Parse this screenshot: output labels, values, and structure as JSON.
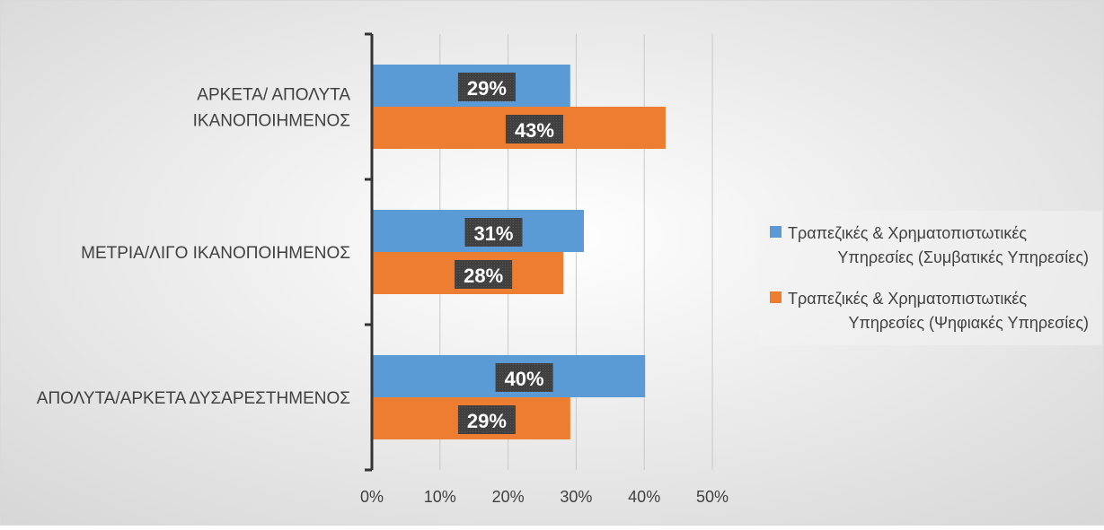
{
  "chart_data": {
    "type": "bar",
    "orientation": "horizontal",
    "categories": [
      [
        "ΑΡΚΕΤΑ/ ΑΠΟΛΥΤΑ",
        "ΙΚΑΝΟΠΟΙΗΜΕΝΟΣ"
      ],
      [
        "ΜΕΤΡΙΑ/ΛΙΓΟ ΙΚΑΝΟΠΟΙΗΜΕΝΟΣ"
      ],
      [
        "ΑΠΟΛΥΤΑ/ΑΡΚΕΤΑ ΔΥΣΑΡΕΣΤΗΜΕΝΟΣ"
      ]
    ],
    "series": [
      {
        "name": [
          "Τραπεζικές & Χρηματοπιστωτικές",
          "Υπηρεσίες (Συμβατικές Υπηρεσίες)"
        ],
        "values": [
          0.29,
          0.31,
          0.4
        ],
        "data_labels": [
          "29%",
          "31%",
          "40%"
        ],
        "color": "#5B9BD5"
      },
      {
        "name": [
          "Τραπεζικές & Χρηματοπιστωτικές",
          "Υπηρεσίες (Ψηφιακές Υπηρεσίες)"
        ],
        "values": [
          0.43,
          0.28,
          0.29
        ],
        "data_labels": [
          "43%",
          "28%",
          "29%"
        ],
        "color": "#ED7D31"
      }
    ],
    "xlim": [
      0,
      0.5
    ],
    "xticks": [
      "0%",
      "10%",
      "20%",
      "30%",
      "40%",
      "50%"
    ],
    "grid": true,
    "legend_position": "right",
    "title": "",
    "xlabel": "",
    "ylabel": ""
  }
}
